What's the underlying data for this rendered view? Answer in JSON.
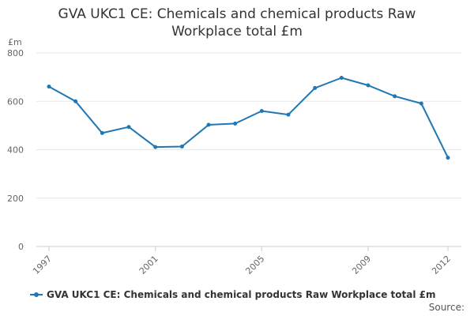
{
  "chart_data": {
    "type": "line",
    "title_line1": "GVA UKC1 CE: Chemicals and chemical products Raw",
    "title_line2": "Workplace total £m",
    "ylabel": "£m",
    "ylim": [
      0,
      800
    ],
    "yticks": [
      0,
      200,
      400,
      600,
      800
    ],
    "xlim": [
      1997,
      2012
    ],
    "xtick_labels": [
      "1997",
      "2001",
      "2005",
      "2009",
      "2012"
    ],
    "grid": true,
    "legend_position": "bottom-left",
    "colors": {
      "series": "#1f77b4",
      "grid": "#e6e6e6",
      "axis": "#cccccc"
    },
    "series": [
      {
        "name": "GVA UKC1 CE: Chemicals and chemical products Raw Workplace total £m",
        "x": [
          1997,
          1998,
          1999,
          2000,
          2001,
          2002,
          2003,
          2004,
          2005,
          2006,
          2007,
          2008,
          2009,
          2010,
          2011,
          2012
        ],
        "values": [
          661,
          600,
          469,
          494,
          411,
          413,
          503,
          508,
          560,
          545,
          655,
          697,
          666,
          621,
          591,
          367
        ]
      }
    ]
  },
  "source_label": "Source:"
}
